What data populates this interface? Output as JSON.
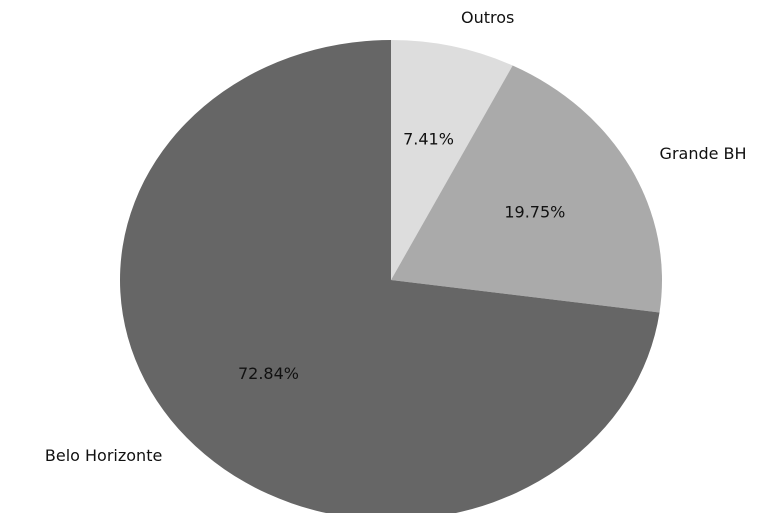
{
  "chart_data": {
    "type": "pie",
    "title": "",
    "slices": [
      {
        "label": "Outros",
        "value": 7.41,
        "display": "7.41%",
        "color": "#dddddd"
      },
      {
        "label": "Grande BH",
        "value": 19.75,
        "display": "19.75%",
        "color": "#aaaaaa"
      },
      {
        "label": "Belo Horizonte",
        "value": 72.84,
        "display": "72.84%",
        "color": "#666666"
      }
    ],
    "start": "top",
    "direction": "clockwise"
  }
}
